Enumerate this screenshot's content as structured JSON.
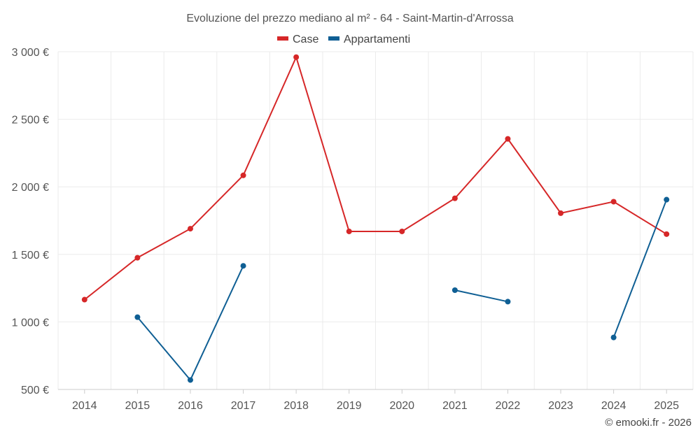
{
  "chart_data": {
    "type": "line",
    "title": "Evoluzione del prezzo mediano al m² - 64 - Saint-Martin-d'Arrossa",
    "x": [
      "2014",
      "2015",
      "2016",
      "2017",
      "2018",
      "2019",
      "2020",
      "2021",
      "2022",
      "2023",
      "2024",
      "2025"
    ],
    "series": [
      {
        "name": "Case",
        "color": "#d62728",
        "values": [
          1165,
          1475,
          1690,
          2085,
          2960,
          1670,
          1670,
          1915,
          2355,
          1805,
          1890,
          1650
        ]
      },
      {
        "name": "Appartamenti",
        "color": "#0f5f94",
        "values": [
          null,
          1035,
          570,
          1415,
          null,
          null,
          null,
          1235,
          1150,
          null,
          885,
          1905
        ]
      }
    ],
    "ylim": [
      500,
      3000
    ],
    "yticks": [
      500,
      1000,
      1500,
      2000,
      2500,
      3000
    ],
    "ytick_labels": [
      "500 €",
      "1 000 €",
      "1 500 €",
      "2 000 €",
      "2 500 €",
      "3 000 €"
    ],
    "xlabel": "",
    "ylabel": "",
    "grid": true,
    "legend": "top-center"
  },
  "credit": "© emooki.fr - 2026"
}
